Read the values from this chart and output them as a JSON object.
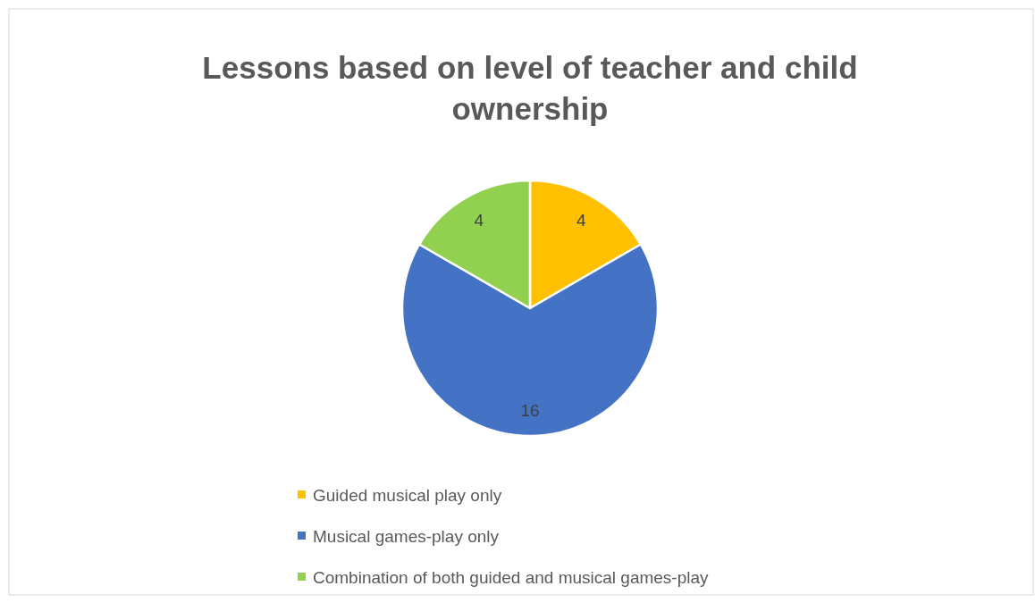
{
  "chart_data": {
    "type": "pie",
    "title": "Lessons based on level of teacher and child ownership",
    "categories": [
      "Guided musical play only",
      "Musical games-play only",
      "Combination of both guided and musical games-play"
    ],
    "values": [
      4,
      16,
      4
    ],
    "colors": [
      "#ffc000",
      "#4472c4",
      "#92d050"
    ],
    "data_labels": true,
    "legend": "bottom"
  }
}
